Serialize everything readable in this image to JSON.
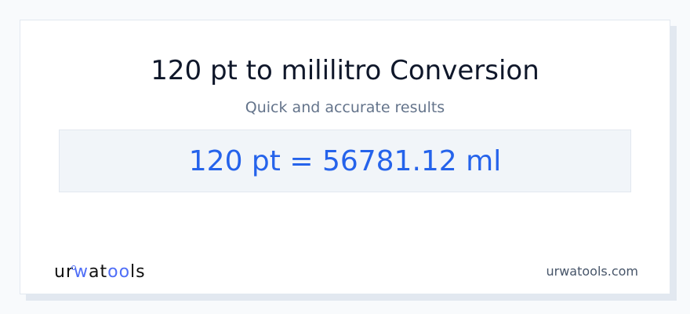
{
  "title": "120 pt to mililitro Conversion",
  "subtitle": "Quick and accurate results",
  "result": "120 pt = 56781.12 ml",
  "footer": {
    "logo_text": "urwatools",
    "domain": "urwatools.com"
  },
  "colors": {
    "accent": "#2563eb",
    "logo_accent": "#4f6ef7"
  }
}
